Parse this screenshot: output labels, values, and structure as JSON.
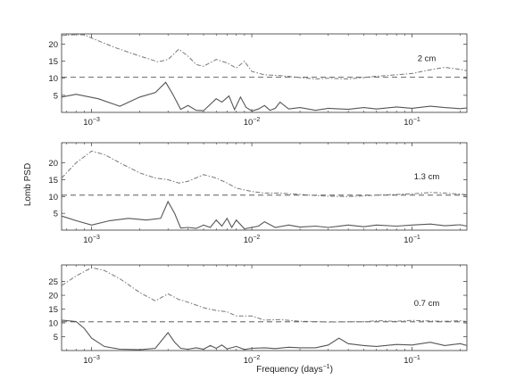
{
  "figure": {
    "ylabel": "Lomb PSD",
    "xlabel_main": "Frequency (days",
    "xlabel_sup": "−1",
    "xlabel_end": ")"
  },
  "chart_data": [
    {
      "type": "line",
      "panel": 1,
      "annotation": "2 cm",
      "x_scale": "log",
      "xlim": [
        0.00065,
        0.22
      ],
      "ylim": [
        0,
        23
      ],
      "yticks": [
        5,
        10,
        15,
        20
      ],
      "xticks": [
        {
          "value": 0.001,
          "base": "10",
          "exp": "−3"
        },
        {
          "value": 0.01,
          "base": "10",
          "exp": "−2"
        },
        {
          "value": 0.1,
          "base": "10",
          "exp": "−1"
        }
      ],
      "threshold": 10.3,
      "series": [
        {
          "style": "dash-dot",
          "x": [
            0.00065,
            0.0008,
            0.0009,
            0.0011,
            0.0014,
            0.002,
            0.0026,
            0.003,
            0.0035,
            0.004,
            0.0045,
            0.005,
            0.006,
            0.007,
            0.008,
            0.009,
            0.01,
            0.012,
            0.015,
            0.02,
            0.025,
            0.03,
            0.04,
            0.05,
            0.06,
            0.08,
            0.1,
            0.13,
            0.16,
            0.2,
            0.22
          ],
          "y": [
            22.5,
            22.8,
            22.7,
            21,
            19,
            16.5,
            14.8,
            15.5,
            18.5,
            16.5,
            14,
            13.5,
            15.5,
            14.5,
            13,
            15,
            12,
            11,
            10.8,
            10.2,
            9.8,
            10,
            9.8,
            10.2,
            10.6,
            11,
            11.4,
            12.5,
            13.2,
            12.6,
            12.2
          ]
        },
        {
          "style": "solid",
          "x": [
            0.00065,
            0.0008,
            0.0011,
            0.0015,
            0.002,
            0.0025,
            0.0029,
            0.0032,
            0.0036,
            0.004,
            0.0045,
            0.005,
            0.006,
            0.0065,
            0.0072,
            0.0078,
            0.0085,
            0.0092,
            0.01,
            0.011,
            0.012,
            0.013,
            0.014,
            0.015,
            0.017,
            0.02,
            0.025,
            0.03,
            0.04,
            0.05,
            0.06,
            0.08,
            0.1,
            0.13,
            0.16,
            0.2,
            0.22
          ],
          "y": [
            4.5,
            5.3,
            4.0,
            1.8,
            4.5,
            5.8,
            8.8,
            5.5,
            0.9,
            2.0,
            0.6,
            0.5,
            4.0,
            3.0,
            4.8,
            0.8,
            4.5,
            1.5,
            0.4,
            1.0,
            2.0,
            0.6,
            1.2,
            3.0,
            1.0,
            1.4,
            0.6,
            1.2,
            0.9,
            1.4,
            1.0,
            1.6,
            1.2,
            1.8,
            1.4,
            1.1,
            1.3
          ]
        }
      ]
    },
    {
      "type": "line",
      "panel": 2,
      "annotation": "1.3 cm",
      "x_scale": "log",
      "xlim": [
        0.00065,
        0.22
      ],
      "ylim": [
        0,
        26
      ],
      "yticks": [
        5,
        10,
        15,
        20
      ],
      "xticks": [
        {
          "value": 0.001,
          "base": "10",
          "exp": "−3"
        },
        {
          "value": 0.01,
          "base": "10",
          "exp": "−2"
        },
        {
          "value": 0.1,
          "base": "10",
          "exp": "−1"
        }
      ],
      "threshold": 10.4,
      "series": [
        {
          "style": "dash-dot",
          "x": [
            0.00065,
            0.0008,
            0.001,
            0.0012,
            0.0015,
            0.002,
            0.0025,
            0.003,
            0.0035,
            0.004,
            0.005,
            0.006,
            0.007,
            0.008,
            0.01,
            0.012,
            0.015,
            0.02,
            0.025,
            0.03,
            0.04,
            0.05,
            0.06,
            0.08,
            0.1,
            0.13,
            0.16,
            0.2,
            0.22
          ],
          "y": [
            15.5,
            20,
            23.5,
            22.5,
            20,
            17,
            15.5,
            15,
            14,
            14.5,
            16.5,
            15.5,
            14,
            12.5,
            11.5,
            11,
            11,
            10.6,
            10.3,
            10.1,
            10,
            10.2,
            10.4,
            10.6,
            10.8,
            11.2,
            11,
            10.7,
            10.5
          ]
        },
        {
          "style": "solid",
          "x": [
            0.00065,
            0.0008,
            0.001,
            0.0013,
            0.0017,
            0.0022,
            0.0027,
            0.003,
            0.0033,
            0.0036,
            0.004,
            0.0045,
            0.005,
            0.0055,
            0.006,
            0.0065,
            0.007,
            0.0075,
            0.008,
            0.009,
            0.01,
            0.011,
            0.012,
            0.014,
            0.017,
            0.02,
            0.025,
            0.03,
            0.04,
            0.05,
            0.06,
            0.08,
            0.1,
            0.13,
            0.16,
            0.2,
            0.22
          ],
          "y": [
            4.2,
            2.8,
            1.5,
            2.8,
            3.5,
            3.0,
            3.5,
            8.5,
            5.0,
            0.6,
            0.8,
            0.5,
            1.5,
            0.8,
            3.0,
            1.2,
            3.5,
            0.8,
            3.0,
            0.4,
            0.8,
            1.2,
            2.5,
            0.8,
            1.5,
            0.9,
            1.2,
            0.8,
            1.5,
            1.0,
            1.5,
            1.2,
            1.5,
            1.8,
            1.3,
            1.6,
            1.2
          ]
        }
      ]
    },
    {
      "type": "line",
      "panel": 3,
      "annotation": "0.7 cm",
      "x_scale": "log",
      "xlim": [
        0.00065,
        0.22
      ],
      "ylim": [
        0,
        31
      ],
      "yticks": [
        5,
        10,
        15,
        20,
        25
      ],
      "xticks": [
        {
          "value": 0.001,
          "base": "10",
          "exp": "−3"
        },
        {
          "value": 0.01,
          "base": "10",
          "exp": "−2"
        },
        {
          "value": 0.1,
          "base": "10",
          "exp": "−1"
        }
      ],
      "threshold": 10.4,
      "series": [
        {
          "style": "dash-dot",
          "x": [
            0.00065,
            0.0008,
            0.001,
            0.0012,
            0.0015,
            0.002,
            0.0025,
            0.003,
            0.0035,
            0.004,
            0.005,
            0.006,
            0.007,
            0.008,
            0.01,
            0.012,
            0.015,
            0.02,
            0.025,
            0.03,
            0.04,
            0.05,
            0.06,
            0.08,
            0.1,
            0.13,
            0.16,
            0.2,
            0.22
          ],
          "y": [
            23.5,
            27,
            30,
            29,
            26,
            21,
            18,
            20.5,
            18.5,
            17.5,
            15.5,
            14.5,
            14,
            12.5,
            12.5,
            11,
            11.2,
            10.6,
            10.5,
            10.3,
            10.4,
            10.4,
            10.8,
            10.6,
            10.9,
            10.7,
            10.6,
            10.8,
            10.5
          ]
        },
        {
          "style": "solid",
          "x": [
            0.00065,
            0.0008,
            0.0009,
            0.001,
            0.0012,
            0.0015,
            0.002,
            0.0025,
            0.003,
            0.0033,
            0.0036,
            0.004,
            0.0045,
            0.005,
            0.0055,
            0.006,
            0.0065,
            0.007,
            0.008,
            0.009,
            0.01,
            0.012,
            0.014,
            0.017,
            0.02,
            0.025,
            0.03,
            0.035,
            0.04,
            0.05,
            0.06,
            0.08,
            0.1,
            0.13,
            0.16,
            0.2,
            0.22
          ],
          "y": [
            11,
            10.5,
            8,
            4.5,
            1.5,
            0.5,
            0.3,
            0.8,
            6.5,
            3.0,
            0.8,
            0.5,
            1.0,
            0.5,
            1.8,
            0.8,
            2.0,
            0.6,
            1.5,
            0.4,
            0.8,
            1.0,
            0.7,
            1.2,
            1.0,
            1.0,
            2.0,
            4.5,
            2.5,
            1.8,
            1.5,
            2.2,
            2.0,
            3.0,
            1.8,
            2.5,
            1.8
          ]
        }
      ]
    }
  ]
}
